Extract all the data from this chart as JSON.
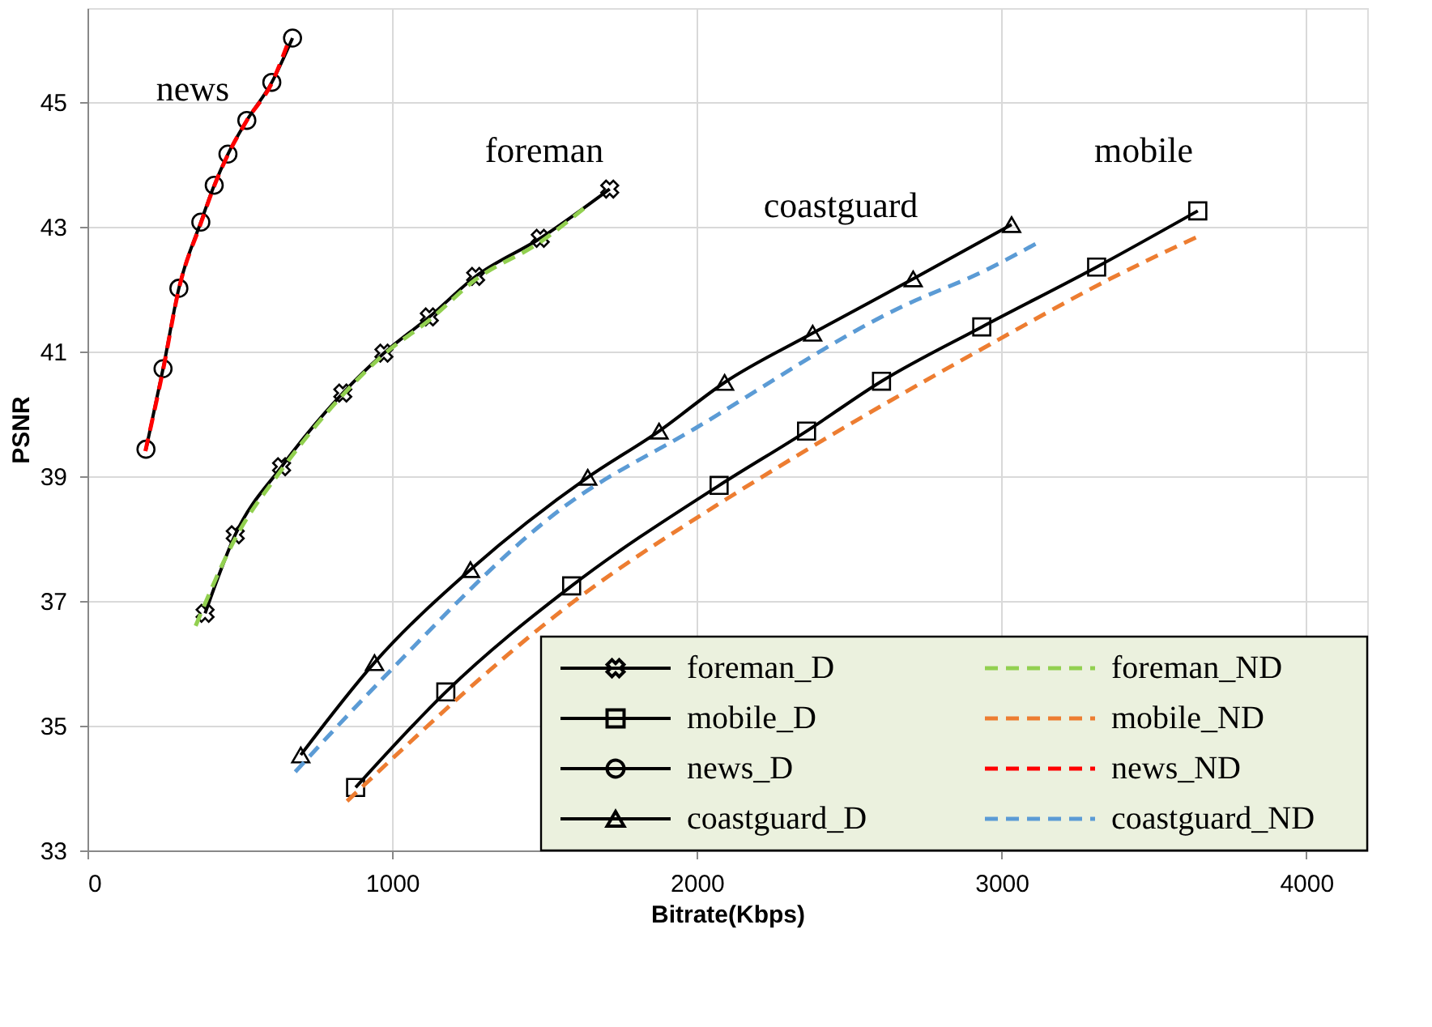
{
  "chart_data": {
    "type": "line",
    "xlabel": "Bitrate(Kbps)",
    "ylabel": "PSNR",
    "xlim": [
      0,
      4200
    ],
    "ylim": [
      33,
      46.5
    ],
    "xticks": [
      0,
      1000,
      2000,
      3000,
      4000
    ],
    "yticks": [
      33,
      35,
      37,
      39,
      41,
      43,
      45
    ],
    "grid": true,
    "legend": "bottom right",
    "annotations": [
      "news",
      "foreman",
      "coastguard",
      "mobile"
    ],
    "series": [
      {
        "name": "foreman_D",
        "color": "#000000",
        "marker": "cross",
        "line_style": "solid",
        "x": [
          386,
          485,
          637,
          838,
          973,
          1122,
          1274,
          1486,
          1714
        ],
        "values": [
          36.8,
          38.06,
          39.15,
          40.33,
          40.97,
          41.55,
          42.2,
          42.81,
          43.6
        ]
      },
      {
        "name": "mobile_D",
        "color": "#000000",
        "marker": "square",
        "line_style": "solid",
        "x": [
          880,
          1176,
          1589,
          2073,
          2360,
          2606,
          2935,
          3312,
          3644
        ],
        "values": [
          34.01,
          35.54,
          37.24,
          38.85,
          39.72,
          40.52,
          41.39,
          42.35,
          43.25
        ]
      },
      {
        "name": "news_D",
        "color": "#000000",
        "marker": "circle",
        "line_style": "solid",
        "x": [
          192,
          248,
          300,
          372,
          416,
          461,
          523,
          605,
          673
        ],
        "values": [
          39.43,
          40.72,
          42.01,
          43.07,
          43.66,
          44.16,
          44.7,
          45.31,
          46.02
        ]
      },
      {
        "name": "coastguard_D",
        "color": "#000000",
        "marker": "triangle",
        "line_style": "solid",
        "x": [
          700,
          942,
          1257,
          1642,
          1876,
          2091,
          2380,
          2710,
          3033
        ],
        "values": [
          34.53,
          36.01,
          37.5,
          38.98,
          39.72,
          40.5,
          41.29,
          42.16,
          43.03
        ]
      },
      {
        "name": "foreman_ND",
        "color": "#92d050",
        "marker": "none",
        "line_style": "dashed",
        "x": [
          355,
          485,
          637,
          838,
          973,
          1122,
          1274,
          1486,
          1632
        ],
        "values": [
          36.6,
          38.0,
          39.1,
          40.3,
          40.95,
          41.5,
          42.15,
          42.75,
          43.3
        ]
      },
      {
        "name": "mobile_ND",
        "color": "#ed7d31",
        "marker": "none",
        "line_style": "dashed",
        "x": [
          852,
          1615,
          2100,
          2405,
          2962,
          3356,
          3653
        ],
        "values": [
          33.79,
          37.06,
          38.64,
          39.55,
          41.11,
          42.16,
          42.86
        ]
      },
      {
        "name": "news_ND",
        "color": "#ff0000",
        "marker": "none",
        "line_style": "dashed",
        "x": [
          190,
          248,
          300,
          372,
          416,
          461,
          523,
          605,
          655
        ],
        "values": [
          39.4,
          40.7,
          42.0,
          43.05,
          43.65,
          44.15,
          44.7,
          45.3,
          45.9
        ]
      },
      {
        "name": "coastguard_ND",
        "color": "#5b9bd5",
        "marker": "none",
        "line_style": "dashed",
        "x": [
          682,
          978,
          1562,
          1993,
          2675,
          2944,
          3115
        ],
        "values": [
          34.26,
          35.8,
          38.5,
          39.76,
          41.72,
          42.29,
          42.73
        ]
      }
    ]
  }
}
